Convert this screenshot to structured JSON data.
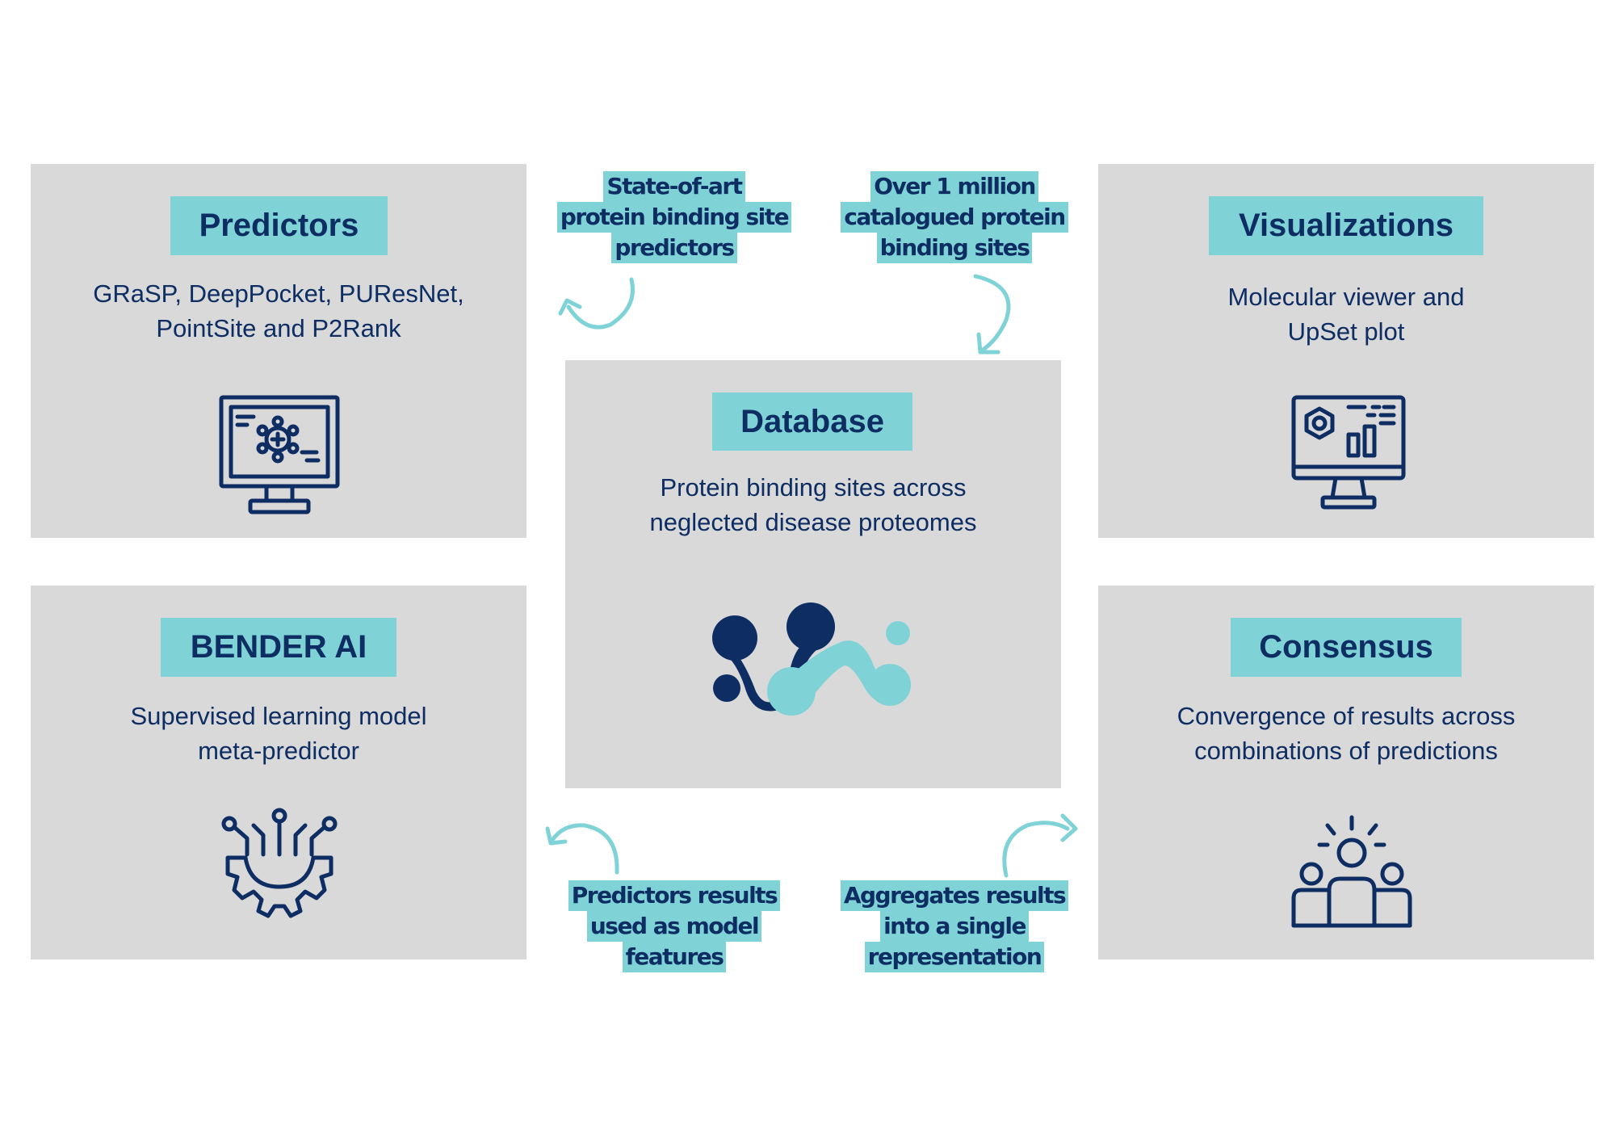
{
  "panels": {
    "predictors": {
      "title": "Predictors",
      "desc": [
        "GRaSP, DeepPocket, PUResNet,",
        "PointSite and P2Rank"
      ],
      "icon": "computer-network-icon"
    },
    "visualizations": {
      "title": "Visualizations",
      "desc": [
        "Molecular viewer and",
        "UpSet plot"
      ],
      "icon": "dashboard-monitor-icon"
    },
    "database": {
      "title": "Database",
      "desc": [
        "Protein binding sites across",
        "neglected disease proteomes"
      ],
      "icon": "molecule-logo-icon"
    },
    "bender": {
      "title": "BENDER AI",
      "desc": [
        "Supervised learning model",
        "meta-predictor"
      ],
      "icon": "ai-gear-icon"
    },
    "consensus": {
      "title": "Consensus",
      "desc": [
        "Convergence of results across",
        "combinations of predictions"
      ],
      "icon": "team-idea-icon"
    }
  },
  "notes": {
    "top_left": [
      "State-of-art",
      "protein binding site",
      "predictors"
    ],
    "top_right": [
      "Over 1 million",
      "catalogued protein",
      "binding sites"
    ],
    "bottom_left": [
      "Predictors results",
      "used as model",
      "features"
    ],
    "bottom_right": [
      "Aggregates results",
      "into a single",
      "representation"
    ]
  },
  "colors": {
    "panel": "#d9d9d9",
    "accent": "#7fd3d6",
    "text": "#0d2d63"
  }
}
